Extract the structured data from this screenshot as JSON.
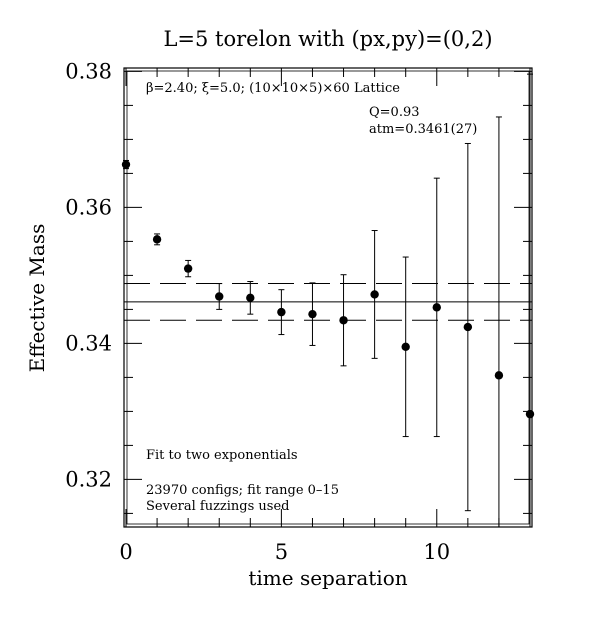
{
  "chart_data": {
    "type": "scatter",
    "title": "L=5 torelon with (px,py)=(0,2)",
    "xlabel": "time separation",
    "ylabel": "Effective Mass",
    "xlim": [
      0,
      13
    ],
    "ylim": [
      0.313,
      0.3805
    ],
    "x_ticks": [
      0,
      5,
      10
    ],
    "x_tick_labels": [
      "0",
      "5",
      "10"
    ],
    "y_ticks": [
      0.32,
      0.34,
      0.36,
      0.38
    ],
    "y_tick_labels": [
      "0.32",
      "0.34",
      "0.36",
      "0.38"
    ],
    "grid": false,
    "lattice_note": "β=2.40; ξ=5.0; (10×10×5)×60 Lattice",
    "fit_quality": "Q=0.93",
    "fit_mass": "atm=0.3461(27)",
    "footnotes": [
      "Fit to two exponentials",
      "23970 configs; fit range 0–15",
      "Several fuzzings used"
    ],
    "fit": {
      "value": 0.3461,
      "error": 0.0027
    },
    "points": [
      {
        "x": 0,
        "y": 0.3663,
        "err": 0.0006
      },
      {
        "x": 1,
        "y": 0.3553,
        "err": 0.0008
      },
      {
        "x": 2,
        "y": 0.351,
        "err": 0.0012
      },
      {
        "x": 3,
        "y": 0.3469,
        "err": 0.0019
      },
      {
        "x": 4,
        "y": 0.3467,
        "err": 0.0024
      },
      {
        "x": 5,
        "y": 0.3446,
        "err": 0.0033
      },
      {
        "x": 6,
        "y": 0.3443,
        "err": 0.0046
      },
      {
        "x": 7,
        "y": 0.3434,
        "err": 0.0067
      },
      {
        "x": 8,
        "y": 0.3472,
        "err": 0.0094
      },
      {
        "x": 9,
        "y": 0.3395,
        "err": 0.0132
      },
      {
        "x": 10,
        "y": 0.3453,
        "err": 0.019
      },
      {
        "x": 11,
        "y": 0.3424,
        "err": 0.027
      },
      {
        "x": 12,
        "y": 0.3353,
        "err": 0.038
      },
      {
        "x": 13,
        "y": 0.3296,
        "err": 0.05
      }
    ]
  }
}
